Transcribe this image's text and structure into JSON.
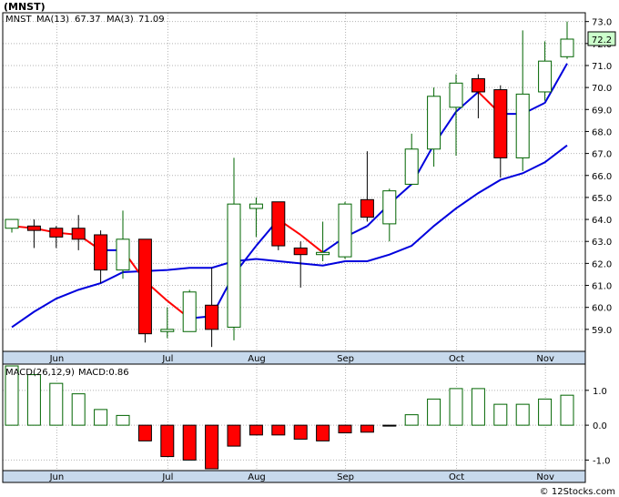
{
  "title": "(MNST)",
  "legend": {
    "symbol": "MNST",
    "ma13_label": "MA(13)",
    "ma13_value": "67.37",
    "ma3_label": "MA(3)",
    "ma3_value": "71.09",
    "macd_label": "MACD(26,12,9)",
    "macd_value_label": "MACD:0.86"
  },
  "last_price_badge": "72.2",
  "footer": "© 12Stocks.com",
  "colors": {
    "up_candle": "#006400",
    "down_candle": "#ff0000",
    "ma_fast": "#0000dd",
    "ma_slow_down": "#ff0000",
    "macd_positive": "#006400",
    "macd_negative": "#ff0000",
    "badge_fill": "#ccffcc"
  },
  "chart_data": [
    {
      "type": "candlestick",
      "title": "(MNST)",
      "ylim": [
        58.0,
        73.4
      ],
      "y_ticks": [
        "59.0",
        "60.0",
        "61.0",
        "62.0",
        "63.0",
        "64.0",
        "65.0",
        "66.0",
        "67.0",
        "68.0",
        "69.0",
        "70.0",
        "71.0",
        "72.0",
        "73.0"
      ],
      "x_labels": [
        {
          "label": "Jun",
          "index": 1
        },
        {
          "label": "Jul",
          "index": 6
        },
        {
          "label": "Aug",
          "index": 10
        },
        {
          "label": "Sep",
          "index": 14
        },
        {
          "label": "Oct",
          "index": 19
        },
        {
          "label": "Nov",
          "index": 23
        }
      ],
      "candles": [
        {
          "open": 63.6,
          "close": 64.0,
          "high": 64.0,
          "low": 63.4
        },
        {
          "open": 63.7,
          "close": 63.5,
          "high": 64.0,
          "low": 62.7
        },
        {
          "open": 63.6,
          "close": 63.2,
          "high": 63.7,
          "low": 62.7
        },
        {
          "open": 63.6,
          "close": 63.1,
          "high": 64.2,
          "low": 62.6
        },
        {
          "open": 63.3,
          "close": 61.7,
          "high": 63.5,
          "low": 61.1
        },
        {
          "open": 61.7,
          "close": 63.1,
          "high": 64.4,
          "low": 61.3
        },
        {
          "open": 63.1,
          "close": 58.8,
          "high": 63.1,
          "low": 58.4
        },
        {
          "open": 58.9,
          "close": 59.0,
          "high": 60.0,
          "low": 58.6
        },
        {
          "open": 58.9,
          "close": 60.7,
          "high": 60.8,
          "low": 58.9
        },
        {
          "open": 60.1,
          "close": 59.0,
          "high": 61.8,
          "low": 58.2
        },
        {
          "open": 59.1,
          "close": 64.7,
          "high": 66.8,
          "low": 58.5
        },
        {
          "open": 64.5,
          "close": 64.7,
          "high": 65.0,
          "low": 63.2
        },
        {
          "open": 64.8,
          "close": 62.8,
          "high": 64.8,
          "low": 62.6
        },
        {
          "open": 62.7,
          "close": 62.4,
          "high": 63.0,
          "low": 60.9
        },
        {
          "open": 62.4,
          "close": 62.5,
          "high": 63.9,
          "low": 62.1
        },
        {
          "open": 62.3,
          "close": 64.7,
          "high": 64.8,
          "low": 62.2
        },
        {
          "open": 64.9,
          "close": 64.1,
          "high": 67.1,
          "low": 63.9
        },
        {
          "open": 63.8,
          "close": 65.3,
          "high": 65.4,
          "low": 63.0
        },
        {
          "open": 65.6,
          "close": 67.2,
          "high": 67.9,
          "low": 65.6
        },
        {
          "open": 67.2,
          "close": 69.6,
          "high": 70.0,
          "low": 66.4
        },
        {
          "open": 69.1,
          "close": 70.2,
          "high": 70.6,
          "low": 66.9
        },
        {
          "open": 70.4,
          "close": 69.8,
          "high": 70.6,
          "low": 68.6
        },
        {
          "open": 69.9,
          "close": 66.8,
          "high": 70.1,
          "low": 65.9
        },
        {
          "open": 66.8,
          "close": 69.7,
          "high": 72.6,
          "low": 66.2
        },
        {
          "open": 69.8,
          "close": 71.2,
          "high": 72.1,
          "low": 69.4
        },
        {
          "open": 71.4,
          "close": 72.2,
          "high": 73.0,
          "low": 71.3
        }
      ],
      "series": [
        {
          "name": "MA(13)",
          "values": [
            null,
            null,
            null,
            null,
            null,
            null,
            null,
            null,
            null,
            null,
            null,
            null,
            null,
            null,
            null,
            null,
            null,
            null,
            null,
            null,
            null,
            null,
            null,
            null,
            null,
            null
          ],
          "points": [
            {
              "index": 0,
              "value": 59.1
            },
            {
              "index": 1,
              "value": 59.8
            },
            {
              "index": 2,
              "value": 60.4
            },
            {
              "index": 3,
              "value": 60.8
            },
            {
              "index": 4,
              "value": 61.1
            },
            {
              "index": 5,
              "value": 61.6
            },
            {
              "index": 7,
              "value": 61.7
            },
            {
              "index": 8,
              "value": 61.8
            },
            {
              "index": 9,
              "value": 61.8
            },
            {
              "index": 10,
              "value": 62.1
            },
            {
              "index": 11,
              "value": 62.2
            },
            {
              "index": 13,
              "value": 62.0
            },
            {
              "index": 14,
              "value": 61.9
            },
            {
              "index": 15,
              "value": 62.1
            },
            {
              "index": 16,
              "value": 62.1
            },
            {
              "index": 17,
              "value": 62.4
            },
            {
              "index": 18,
              "value": 62.8
            },
            {
              "index": 19,
              "value": 63.7
            },
            {
              "index": 20,
              "value": 64.5
            },
            {
              "index": 21,
              "value": 65.2
            },
            {
              "index": 22,
              "value": 65.8
            },
            {
              "index": 23,
              "value": 66.1
            },
            {
              "index": 24,
              "value": 66.6
            },
            {
              "index": 25,
              "value": 67.37
            }
          ]
        },
        {
          "name": "MA(3)",
          "points": [
            {
              "index": 0,
              "value": 63.7
            },
            {
              "index": 1,
              "value": 63.6
            },
            {
              "index": 2,
              "value": 63.4
            },
            {
              "index": 3,
              "value": 63.3
            },
            {
              "index": 4,
              "value": 62.6
            },
            {
              "index": 5,
              "value": 62.6
            },
            {
              "index": 6,
              "value": 61.2
            },
            {
              "index": 7,
              "value": 60.3
            },
            {
              "index": 8,
              "value": 59.5
            },
            {
              "index": 9,
              "value": 59.6
            },
            {
              "index": 10,
              "value": 61.5
            },
            {
              "index": 11,
              "value": 62.8
            },
            {
              "index": 12,
              "value": 64.0
            },
            {
              "index": 13,
              "value": 63.3
            },
            {
              "index": 14,
              "value": 62.5
            },
            {
              "index": 15,
              "value": 63.2
            },
            {
              "index": 16,
              "value": 63.7
            },
            {
              "index": 17,
              "value": 64.7
            },
            {
              "index": 18,
              "value": 65.6
            },
            {
              "index": 19,
              "value": 67.4
            },
            {
              "index": 20,
              "value": 68.9
            },
            {
              "index": 21,
              "value": 69.8
            },
            {
              "index": 22,
              "value": 68.8
            },
            {
              "index": 23,
              "value": 68.8
            },
            {
              "index": 24,
              "value": 69.3
            },
            {
              "index": 25,
              "value": 71.09
            }
          ]
        }
      ]
    },
    {
      "type": "bar",
      "title": "MACD(26,12,9)",
      "ylim": [
        -1.25,
        1.7
      ],
      "y_ticks": [
        "-1.0",
        "0.0",
        "1.0"
      ],
      "values": [
        1.7,
        1.45,
        1.2,
        0.9,
        0.45,
        0.28,
        -0.45,
        -0.9,
        -1.0,
        -1.25,
        -0.6,
        -0.28,
        -0.28,
        -0.4,
        -0.45,
        -0.22,
        -0.2,
        -0.02,
        0.3,
        0.75,
        1.05,
        1.05,
        0.6,
        0.6,
        0.75,
        0.86
      ]
    }
  ]
}
